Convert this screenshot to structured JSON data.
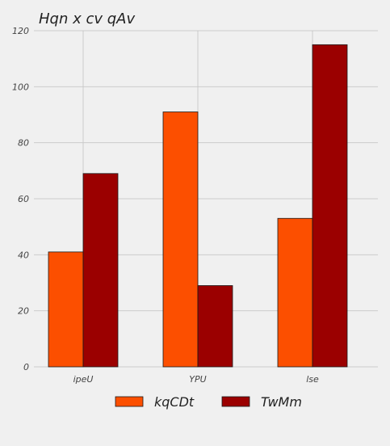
{
  "chart_data": {
    "type": "bar",
    "title": "Hqn x cv qAv",
    "xlabel": "",
    "ylabel": "",
    "categories": [
      "ipeU",
      "YPU",
      "lse"
    ],
    "series": [
      {
        "name": "kqCDt",
        "values": [
          41,
          91,
          53
        ],
        "color": "#fc4f00"
      },
      {
        "name": "TwMm",
        "values": [
          69,
          29,
          115
        ],
        "color": "#9b0000"
      }
    ],
    "ylim": [
      0,
      120
    ],
    "yticks": [
      0,
      20,
      40,
      60,
      80,
      100,
      120
    ],
    "grid": true,
    "legend_position": "bottom-center"
  }
}
